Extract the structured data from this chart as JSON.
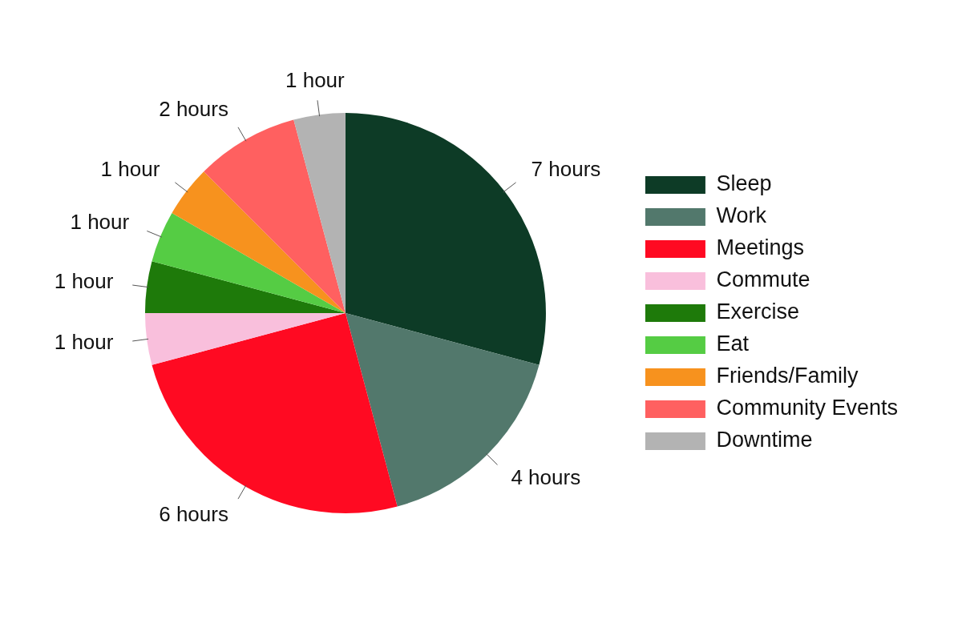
{
  "chart_data": {
    "type": "pie",
    "categories": [
      "Sleep",
      "Work",
      "Meetings",
      "Commute",
      "Exercise",
      "Eat",
      "Friends/Family",
      "Community Events",
      "Downtime"
    ],
    "values": [
      7,
      4,
      6,
      1,
      1,
      1,
      1,
      2,
      1
    ],
    "value_labels": [
      "7 hours",
      "4 hours",
      "6 hours",
      "1 hour",
      "1 hour",
      "1 hour",
      "1 hour",
      "2 hours",
      "1 hour"
    ],
    "colors": [
      "#0d3b26",
      "#52786c",
      "#ff0a22",
      "#f9bfdc",
      "#1e7a0a",
      "#55cc44",
      "#f7921e",
      "#ff6060",
      "#b3b3b3"
    ],
    "legend": "right"
  }
}
